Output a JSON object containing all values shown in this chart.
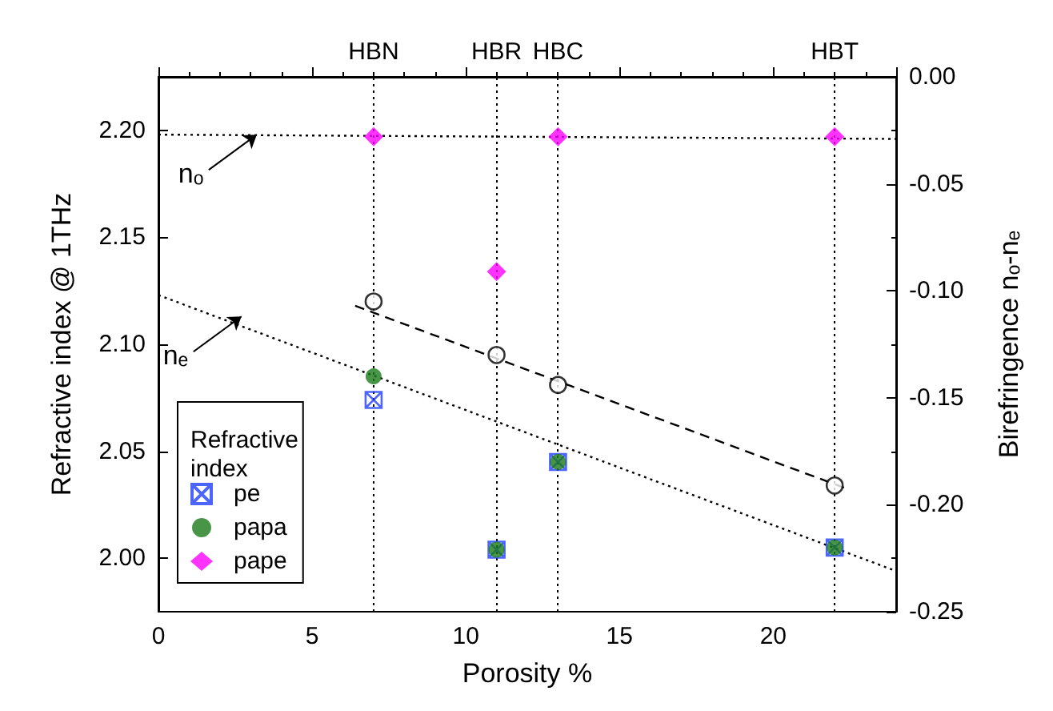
{
  "chart_data": {
    "type": "scatter",
    "xlabel": "Porosity %",
    "ylabel": "Refractive index @ 1THz",
    "y2label": "Birefringence nₒ-nₑ",
    "legend_title": "Refractive index",
    "legend": "bottom left",
    "grid": false,
    "xlim": [
      0,
      24
    ],
    "xticks": [
      0,
      5,
      10,
      15,
      20
    ],
    "ylim": [
      1.975,
      2.225
    ],
    "yticks": [
      {
        "value": 2.0,
        "label": "2.00"
      },
      {
        "value": 2.05,
        "label": "2.05"
      },
      {
        "value": 2.1,
        "label": "2.10"
      },
      {
        "value": 2.15,
        "label": "2.15"
      },
      {
        "value": 2.2,
        "label": "2.20"
      }
    ],
    "y2lim": [
      -0.25,
      0.0
    ],
    "y2ticks": [
      {
        "value": -0.25,
        "label": "-0.25"
      },
      {
        "value": -0.2,
        "label": "-0.20"
      },
      {
        "value": -0.15,
        "label": "-0.15"
      },
      {
        "value": -0.1,
        "label": "-0.10"
      },
      {
        "value": -0.05,
        "label": "-0.05"
      },
      {
        "value": 0,
        "label": "0.00"
      }
    ],
    "series": [
      {
        "name": "pe",
        "color": "#1f3fff",
        "marker": "cross",
        "x": [
          7,
          11,
          13,
          22
        ],
        "values": [
          2.074,
          2.004,
          2.045,
          2.005
        ]
      },
      {
        "name": "papa",
        "color": "#1a7a1a",
        "marker": "circle",
        "x": [
          7,
          11,
          13,
          22
        ],
        "values": [
          2.085,
          2.004,
          2.045,
          2.005
        ]
      },
      {
        "name": "pape",
        "color": "#ff00ff",
        "marker": "diamond",
        "x": [
          7,
          11,
          13,
          22
        ],
        "values": [
          2.197,
          2.134,
          2.197,
          2.197
        ]
      },
      {
        "axis": "y2",
        "color": "#000000",
        "marker": "circle",
        "x": [
          7,
          11,
          13,
          22
        ],
        "values": [
          -0.105,
          -0.13,
          -0.144,
          -0.191
        ]
      },
      {
        "type": "line",
        "axis": "y2",
        "color": "#000000",
        "line_style": "dashed",
        "x": [
          6.4,
          22.3
        ],
        "values": [
          -0.107,
          -0.192
        ]
      },
      {
        "type": "line",
        "color": "#000000",
        "line_style": "dotted",
        "x": [
          0,
          24
        ],
        "values": [
          2.198,
          2.196
        ]
      },
      {
        "type": "line",
        "color": "#000000",
        "line_style": "dotted",
        "x": [
          0,
          24
        ],
        "values": [
          2.123,
          1.994
        ]
      }
    ],
    "ref_lines": [
      {
        "axis": "x",
        "value": 7,
        "label": "HBN",
        "color": "#000000",
        "line_style": "dotted"
      },
      {
        "axis": "x",
        "value": 11,
        "label": "HBR",
        "color": "#000000",
        "line_style": "dotted"
      },
      {
        "axis": "x",
        "value": 13,
        "label": "HBC",
        "color": "#000000",
        "line_style": "dotted"
      },
      {
        "axis": "x",
        "value": 22,
        "label": "HBT",
        "color": "#000000",
        "line_style": "dotted"
      }
    ],
    "annotations": [
      {
        "text": "nₒ",
        "x": 3.2,
        "y": 2.198
      },
      {
        "text": "nₑ",
        "x": 2.7,
        "y": 2.113
      }
    ]
  }
}
